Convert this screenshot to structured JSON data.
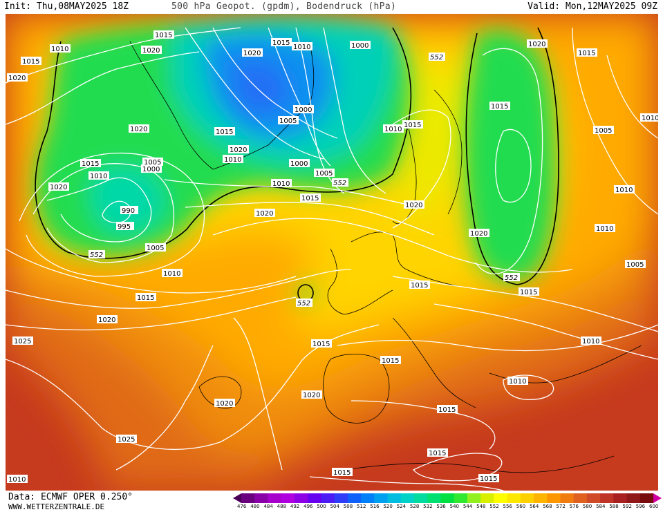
{
  "header": {
    "init": "Init: Thu,08MAY2025 18Z",
    "title": "500 hPa Geopot. (gpdm), Bodendruck (hPa)",
    "valid": "Valid: Mon,12MAY2025 09Z"
  },
  "footer": {
    "data_source": "Data: ECMWF OPER 0.250°",
    "site": "WWW.WETTERZENTRALE.DE"
  },
  "legend": {
    "labels": [
      "476",
      "480",
      "484",
      "488",
      "492",
      "496",
      "500",
      "504",
      "508",
      "512",
      "516",
      "520",
      "524",
      "528",
      "532",
      "536",
      "540",
      "544",
      "548",
      "552",
      "556",
      "560",
      "564",
      "568",
      "572",
      "576",
      "580",
      "584",
      "588",
      "592",
      "596",
      "600"
    ],
    "colors": [
      "#4b0057",
      "#6a0080",
      "#8a00a8",
      "#a800cc",
      "#b100e0",
      "#8d00e6",
      "#6800f0",
      "#4d1cf5",
      "#2f3cf8",
      "#1060fa",
      "#0080f8",
      "#00a0f0",
      "#00bde0",
      "#00d2c8",
      "#00dca0",
      "#00e070",
      "#00e040",
      "#30e830",
      "#90f020",
      "#d8f000",
      "#ffff00",
      "#ffe800",
      "#ffd000",
      "#ffb400",
      "#ff9800",
      "#f07c10",
      "#e06020",
      "#d04a28",
      "#c03428",
      "#a82020",
      "#901818",
      "#780c0c",
      "#d000a0"
    ]
  },
  "map": {
    "pressure_labels": [
      "1010",
      "1015",
      "1020",
      "1020",
      "1015",
      "1020",
      "1015",
      "1010",
      "1000",
      "1020",
      "1000",
      "1005",
      "1015",
      "1020",
      "1010",
      "1005",
      "1000",
      "1010",
      "1015",
      "1020",
      "1010",
      "1015",
      "1000",
      "1005",
      "1010",
      "995",
      "990",
      "1005",
      "1010",
      "1015",
      "1015",
      "1020",
      "1025",
      "1020",
      "1020",
      "1025",
      "1020",
      "1015",
      "1015",
      "1015",
      "1020",
      "1015",
      "1010",
      "1020",
      "1015",
      "1015",
      "1015",
      "1010",
      "1005",
      "1010",
      "1010",
      "1005",
      "1010",
      "1015",
      "1015",
      "1015",
      "1010",
      "1020"
    ],
    "geopotential_labels": [
      "552",
      "552",
      "552",
      "552",
      "552"
    ]
  }
}
